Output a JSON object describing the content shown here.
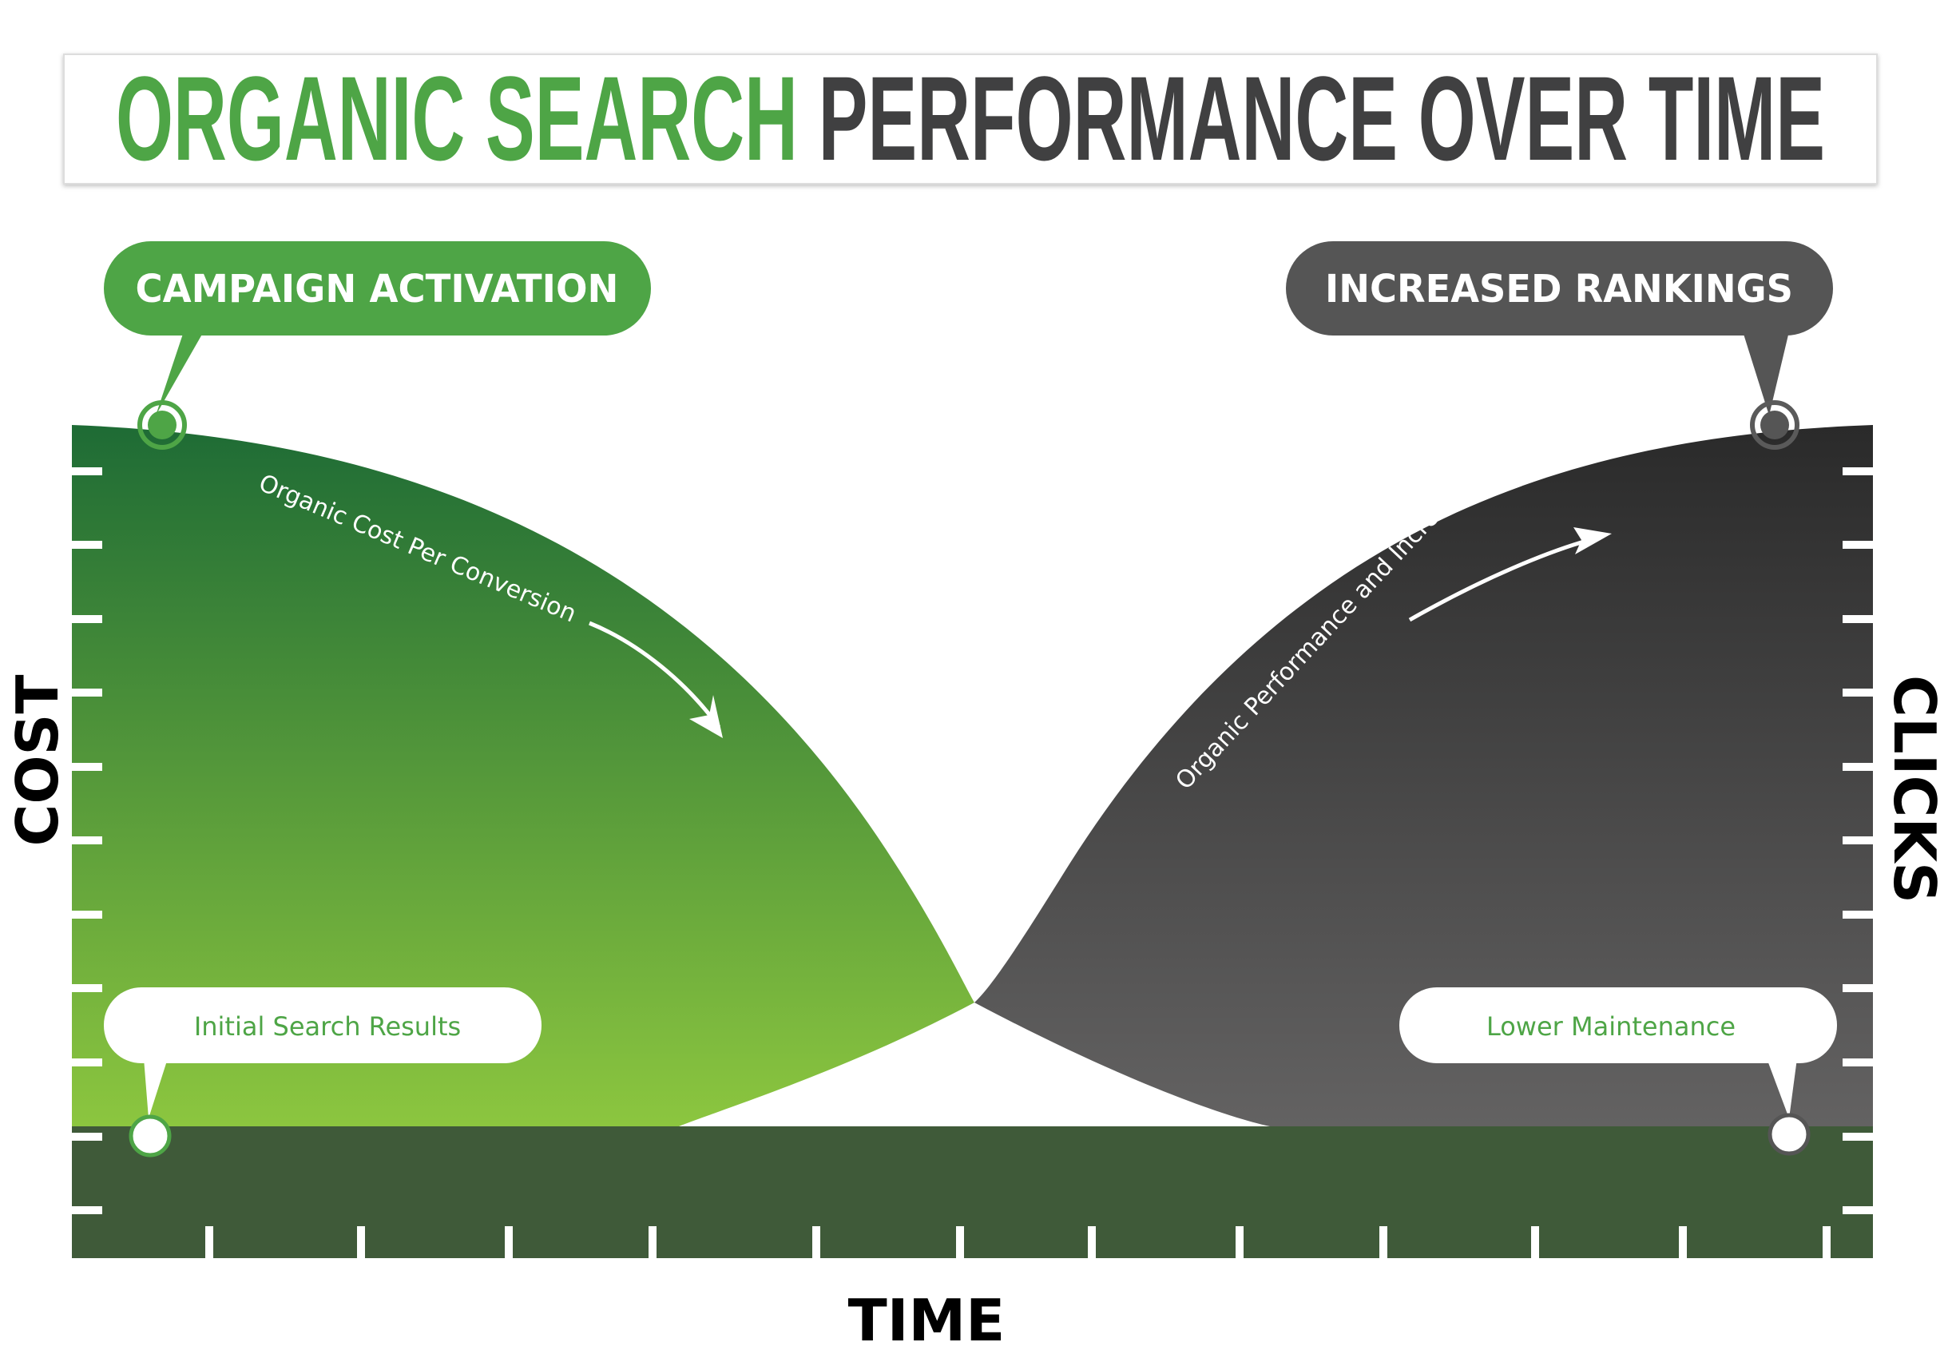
{
  "title": {
    "highlight": "ORGANIC SEARCH",
    "rest": "PERFORMANCE OVER TIME"
  },
  "colors": {
    "green": "#4ea546",
    "green_dark": "#1e6b35",
    "green_light": "#8cc63f",
    "gray_bubble": "#555555",
    "charcoal": "#2a2a2a",
    "gray_light": "#636262",
    "base_band": "#3f5a39",
    "title_gray": "#404041"
  },
  "callouts": {
    "campaign_activation": "CAMPAIGN ACTIVATION",
    "increased_rankings": "INCREASED RANKINGS",
    "initial_search_results": "Initial Search Results",
    "lower_maintenance": "Lower Maintenance"
  },
  "curves": {
    "cost_label": "Organic Cost Per Conversion",
    "clicks_label": "Organic Performance and Increased Leads"
  },
  "axes": {
    "left": "COST",
    "right": "CLICKS",
    "bottom": "TIME"
  }
}
